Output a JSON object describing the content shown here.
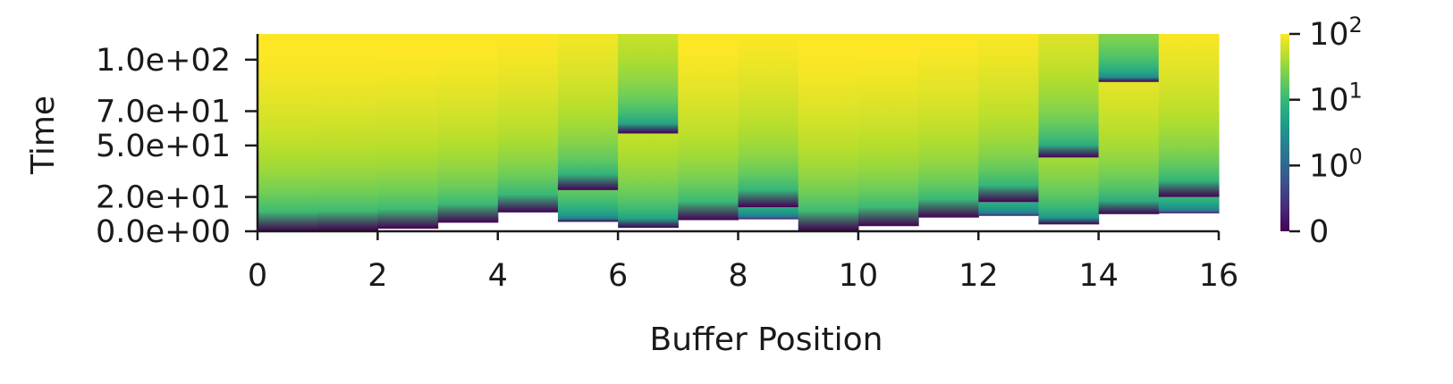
{
  "chart_data": {
    "type": "heatmap",
    "colormap": "viridis",
    "xlabel": "Buffer Position",
    "ylabel": "Time",
    "xlim": [
      0,
      16
    ],
    "ylim": [
      0,
      115
    ],
    "x_ticks": [
      "0",
      "2",
      "4",
      "6",
      "8",
      "10",
      "12",
      "14",
      "16"
    ],
    "y_ticks": [
      {
        "value": 0,
        "label": "0.0e+00"
      },
      {
        "value": 20,
        "label": "2.0e+01"
      },
      {
        "value": 50,
        "label": "5.0e+01"
      },
      {
        "value": 70,
        "label": "7.0e+01"
      },
      {
        "value": 100,
        "label": "1.0e+02"
      }
    ],
    "colorbar": {
      "scale": "symlog",
      "range": [
        0,
        100
      ],
      "ticks": [
        {
          "value": 0,
          "label": "0"
        },
        {
          "value": 1,
          "base": "10",
          "exp": "0"
        },
        {
          "value": 10,
          "base": "10",
          "exp": "1"
        },
        {
          "value": 100,
          "base": "10",
          "exp": "2"
        }
      ]
    },
    "columns": [
      {
        "position": 0,
        "resets": [
          0
        ]
      },
      {
        "position": 1,
        "resets": [
          0.5
        ]
      },
      {
        "position": 2,
        "resets": [
          1.5
        ]
      },
      {
        "position": 3,
        "resets": [
          5
        ]
      },
      {
        "position": 4,
        "resets": [
          11
        ]
      },
      {
        "position": 5,
        "resets": [
          5.5,
          24
        ]
      },
      {
        "position": 6,
        "resets": [
          2,
          57
        ]
      },
      {
        "position": 7,
        "resets": [
          6.5
        ]
      },
      {
        "position": 8,
        "resets": [
          7,
          14
        ]
      },
      {
        "position": 9,
        "resets": [
          0.5
        ]
      },
      {
        "position": 10,
        "resets": [
          3
        ]
      },
      {
        "position": 11,
        "resets": [
          8
        ]
      },
      {
        "position": 12,
        "resets": [
          9,
          17
        ]
      },
      {
        "position": 13,
        "resets": [
          4,
          43
        ]
      },
      {
        "position": 14,
        "resets": [
          10,
          87
        ]
      },
      {
        "position": 15,
        "resets": [
          10.5,
          20
        ]
      }
    ]
  }
}
